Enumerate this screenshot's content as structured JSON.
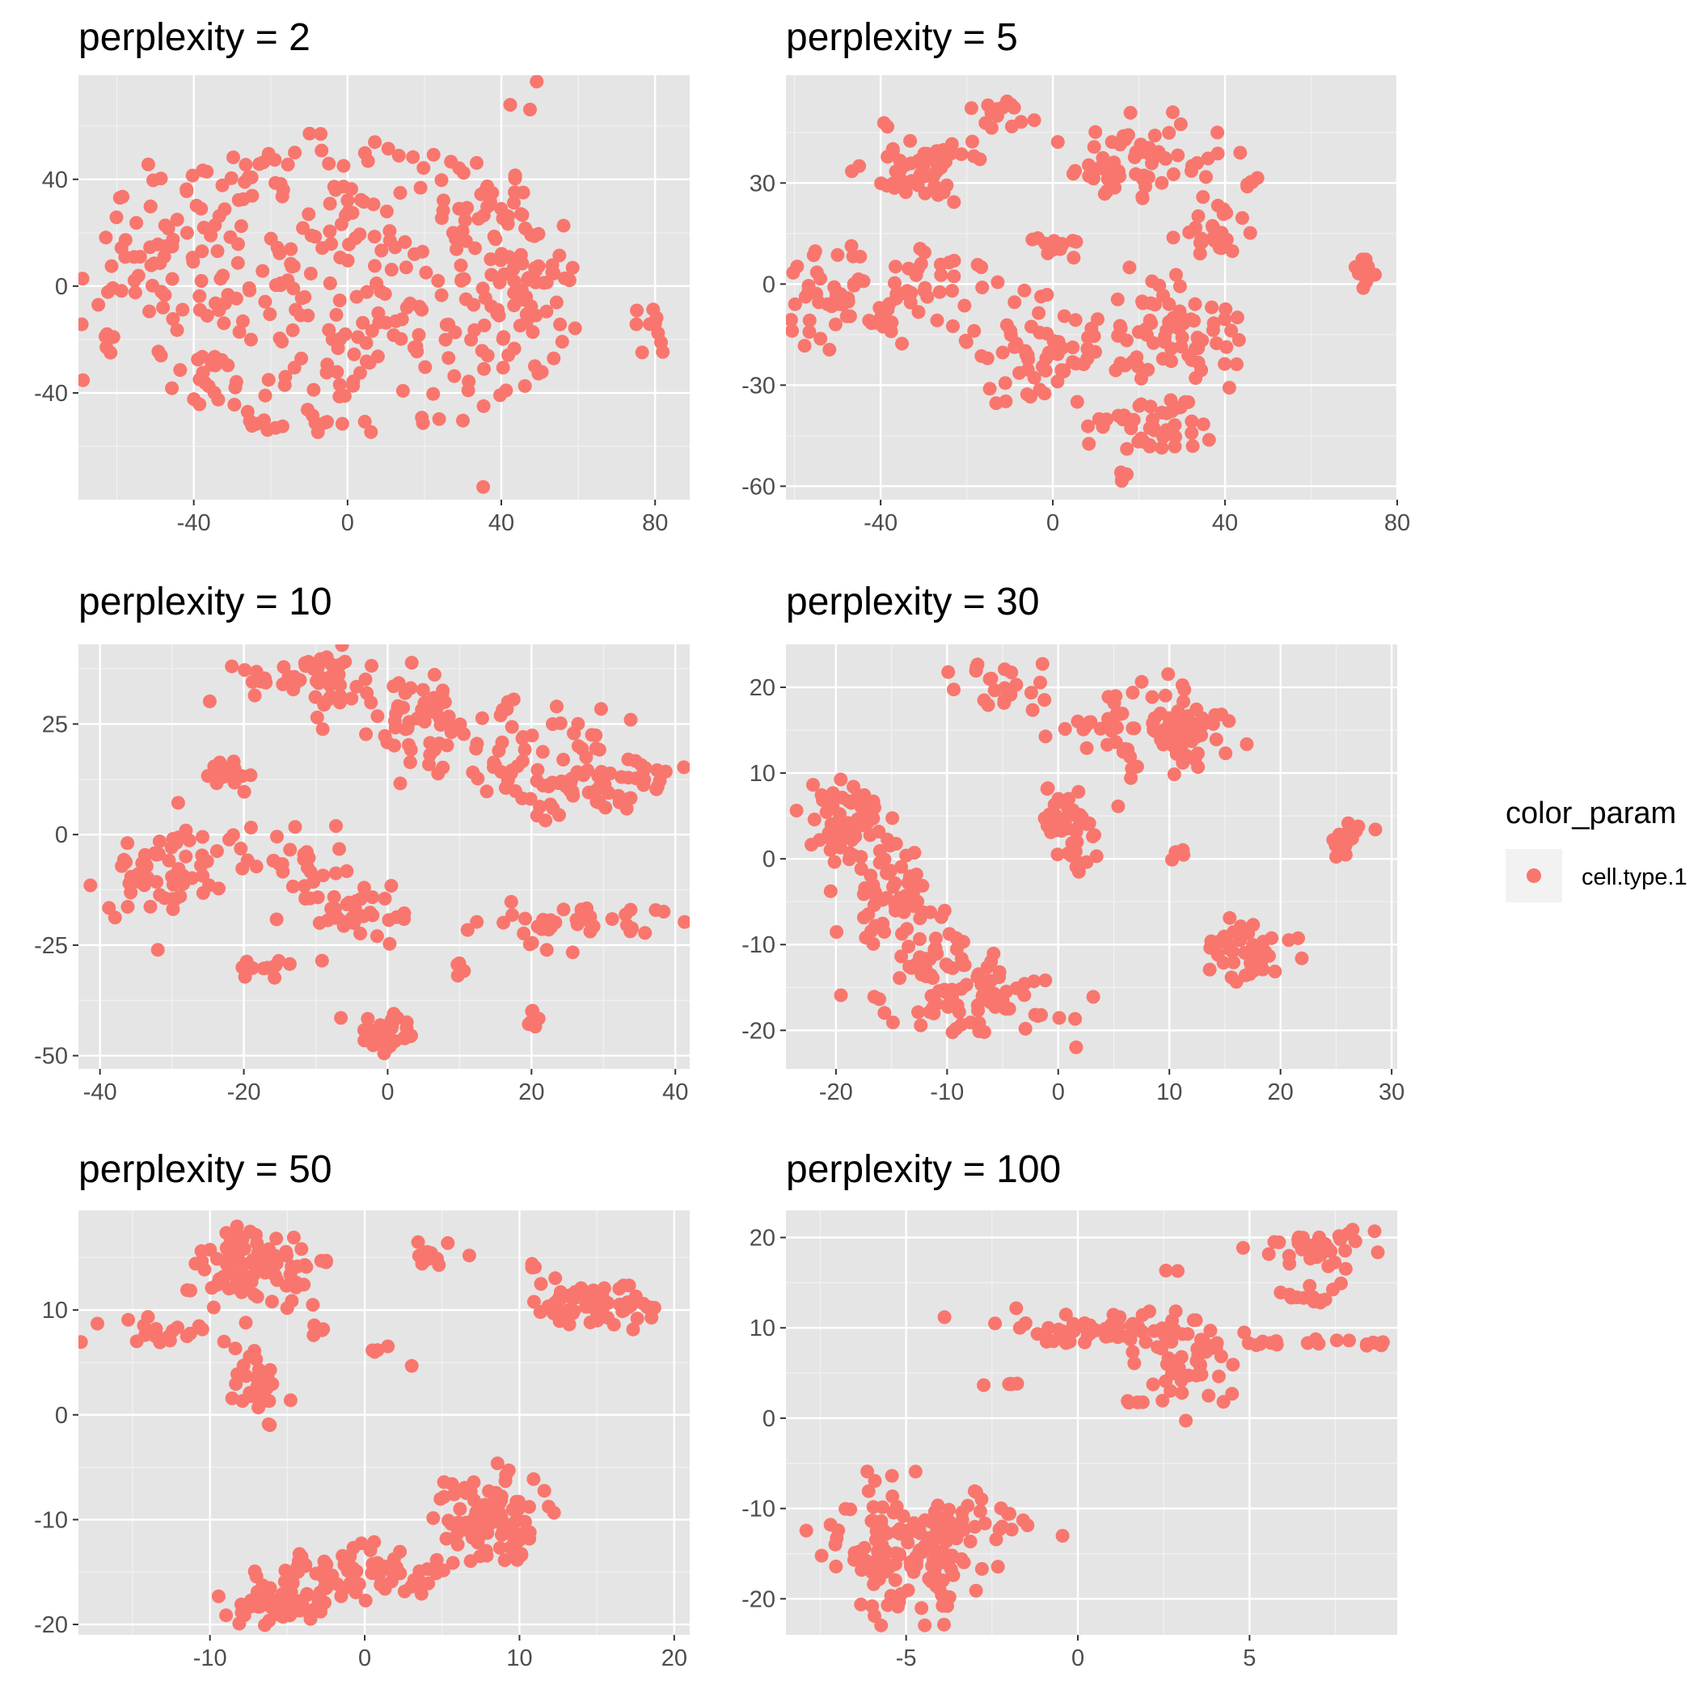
{
  "colors": {
    "panel_bg": "#e5e5e5",
    "grid_major": "#ffffff",
    "grid_minor": "#f2f2f2",
    "point": "#f8766d",
    "tick_text": "#4d4d4d",
    "tick_mark": "#333333",
    "legend_key_bg": "#f2f2f2"
  },
  "legend": {
    "title": "color_param",
    "items": [
      {
        "label": "cell.type.1"
      }
    ],
    "placement": "right"
  },
  "chart_data": [
    {
      "type": "scatter",
      "title": "perplexity = 2",
      "xlim": [
        -70,
        89
      ],
      "ylim": [
        -80,
        79
      ],
      "xticks": [
        -40,
        0,
        40,
        80
      ],
      "yticks": [
        -40,
        0,
        40
      ],
      "clusters": [
        {
          "cx": 0,
          "cy": 0,
          "sx": 35,
          "sy": 33,
          "n": 360,
          "r": 58
        },
        {
          "cx": -55,
          "cy": 15,
          "sx": 8,
          "sy": 12,
          "n": 25
        },
        {
          "cx": 47,
          "cy": 5,
          "sx": 6,
          "sy": 28,
          "n": 30
        },
        {
          "cx": 78,
          "cy": -12,
          "sx": 3,
          "sy": 8,
          "n": 10
        },
        {
          "cx": -65,
          "cy": -25,
          "sx": 3,
          "sy": 5,
          "n": 8
        }
      ]
    },
    {
      "type": "scatter",
      "title": "perplexity = 5",
      "xlim": [
        -62,
        80
      ],
      "ylim": [
        -64,
        62
      ],
      "xticks": [
        -40,
        0,
        40,
        80
      ],
      "yticks": [
        -60,
        -30,
        0,
        30
      ],
      "clusters": [
        {
          "cx": -30,
          "cy": 35,
          "sx": 7,
          "sy": 6,
          "n": 55
        },
        {
          "cx": -13,
          "cy": 50,
          "sx": 5,
          "sy": 3,
          "n": 15
        },
        {
          "cx": 22,
          "cy": 35,
          "sx": 9,
          "sy": 6,
          "n": 60
        },
        {
          "cx": -45,
          "cy": -5,
          "sx": 10,
          "sy": 8,
          "n": 70
        },
        {
          "cx": -25,
          "cy": 3,
          "sx": 5,
          "sy": 5,
          "n": 20
        },
        {
          "cx": 0,
          "cy": 12,
          "sx": 3,
          "sy": 2,
          "n": 15
        },
        {
          "cx": 0,
          "cy": -20,
          "sx": 9,
          "sy": 8,
          "n": 70
        },
        {
          "cx": 28,
          "cy": -15,
          "sx": 8,
          "sy": 9,
          "n": 70
        },
        {
          "cx": 22,
          "cy": -43,
          "sx": 7,
          "sy": 4,
          "n": 45
        },
        {
          "cx": 38,
          "cy": 15,
          "sx": 4,
          "sy": 4,
          "n": 25
        },
        {
          "cx": 46,
          "cy": 30,
          "sx": 1,
          "sy": 1,
          "n": 5
        },
        {
          "cx": 72,
          "cy": 3,
          "sx": 1.2,
          "sy": 3,
          "n": 10
        },
        {
          "cx": 16,
          "cy": -57,
          "sx": 1,
          "sy": 1,
          "n": 6
        }
      ]
    },
    {
      "type": "scatter",
      "title": "perplexity = 10",
      "xlim": [
        -43,
        42
      ],
      "ylim": [
        -53,
        43
      ],
      "xticks": [
        -40,
        -20,
        0,
        20,
        40
      ],
      "yticks": [
        -50,
        -25,
        0,
        25
      ],
      "clusters": [
        {
          "cx": -12,
          "cy": 35,
          "sx": 5,
          "sy": 3,
          "n": 45
        },
        {
          "cx": 2,
          "cy": 28,
          "sx": 6,
          "sy": 4,
          "n": 40
        },
        {
          "cx": 14,
          "cy": 20,
          "sx": 7,
          "sy": 5,
          "n": 55
        },
        {
          "cx": 25,
          "cy": 10,
          "sx": 6,
          "sy": 5,
          "n": 50
        },
        {
          "cx": 33,
          "cy": 14,
          "sx": 4,
          "sy": 4,
          "n": 25
        },
        {
          "cx": -22,
          "cy": 14,
          "sx": 2,
          "sy": 2,
          "n": 15
        },
        {
          "cx": -32,
          "cy": -10,
          "sx": 4,
          "sy": 7,
          "n": 55
        },
        {
          "cx": -15,
          "cy": -6,
          "sx": 6,
          "sy": 4,
          "n": 30
        },
        {
          "cx": -5,
          "cy": -17,
          "sx": 5,
          "sy": 4,
          "n": 40
        },
        {
          "cx": 24,
          "cy": -20,
          "sx": 8,
          "sy": 3,
          "n": 40
        },
        {
          "cx": 0,
          "cy": -45,
          "sx": 2,
          "sy": 2,
          "n": 30
        },
        {
          "cx": -17,
          "cy": -30,
          "sx": 3,
          "sy": 1,
          "n": 12
        },
        {
          "cx": 20,
          "cy": -40,
          "sx": 0.8,
          "sy": 2,
          "n": 6
        },
        {
          "cx": 10,
          "cy": -30,
          "sx": 0.5,
          "sy": 1,
          "n": 4
        }
      ]
    },
    {
      "type": "scatter",
      "title": "perplexity = 30",
      "xlim": [
        -24.5,
        30.5
      ],
      "ylim": [
        -24.5,
        25
      ],
      "xticks": [
        -20,
        -10,
        0,
        10,
        20,
        30
      ],
      "yticks": [
        -20,
        -10,
        0,
        10,
        20
      ],
      "clusters": [
        {
          "cx": -19,
          "cy": 4,
          "sx": 2,
          "sy": 2.5,
          "n": 55
        },
        {
          "cx": -15,
          "cy": -5,
          "sx": 2.5,
          "sy": 3.5,
          "n": 60
        },
        {
          "cx": -11,
          "cy": -11,
          "sx": 2,
          "sy": 2,
          "n": 25
        },
        {
          "cx": -7,
          "cy": -16,
          "sx": 3.5,
          "sy": 2.5,
          "n": 75
        },
        {
          "cx": 1,
          "cy": 4,
          "sx": 1.5,
          "sy": 2.5,
          "n": 45
        },
        {
          "cx": 10,
          "cy": 15,
          "sx": 3,
          "sy": 2.5,
          "n": 75
        },
        {
          "cx": -4,
          "cy": 20,
          "sx": 3,
          "sy": 1.5,
          "n": 25
        },
        {
          "cx": 3,
          "cy": 16,
          "sx": 2,
          "sy": 1,
          "n": 15
        },
        {
          "cx": 17,
          "cy": -11,
          "sx": 2,
          "sy": 2,
          "n": 45
        },
        {
          "cx": 26,
          "cy": 2,
          "sx": 1,
          "sy": 1,
          "n": 15
        },
        {
          "cx": 11,
          "cy": 0.5,
          "sx": 1,
          "sy": 0.4,
          "n": 5
        }
      ]
    },
    {
      "type": "scatter",
      "title": "perplexity = 50",
      "xlim": [
        -18.5,
        21
      ],
      "ylim": [
        -21,
        19.5
      ],
      "xticks": [
        -10,
        0,
        10,
        20
      ],
      "yticks": [
        -20,
        -10,
        0,
        10
      ],
      "clusters": [
        {
          "cx": -7,
          "cy": 14,
          "sx": 2,
          "sy": 2,
          "n": 90
        },
        {
          "cx": -7,
          "cy": 3,
          "sx": 1,
          "sy": 2,
          "n": 30
        },
        {
          "cx": -13,
          "cy": 8,
          "sx": 2,
          "sy": 0.7,
          "n": 20
        },
        {
          "cx": 4.5,
          "cy": 15,
          "sx": 1,
          "sy": 0.7,
          "n": 12
        },
        {
          "cx": 15,
          "cy": 10.5,
          "sx": 2,
          "sy": 1,
          "n": 70
        },
        {
          "cx": 11,
          "cy": 14,
          "sx": 0.3,
          "sy": 0.3,
          "n": 3
        },
        {
          "cx": 1.5,
          "cy": 6,
          "sx": 0.8,
          "sy": 0.3,
          "n": 5
        },
        {
          "cx": -3.5,
          "cy": 8,
          "sx": 0.8,
          "sy": 0.5,
          "n": 4
        },
        {
          "cx": -6,
          "cy": -18,
          "sx": 2,
          "sy": 1,
          "n": 60
        },
        {
          "cx": 0,
          "cy": -15,
          "sx": 3,
          "sy": 1.5,
          "n": 70
        },
        {
          "cx": 8,
          "cy": -10,
          "sx": 2,
          "sy": 2.2,
          "n": 90
        }
      ]
    },
    {
      "type": "scatter",
      "title": "perplexity = 100",
      "xlim": [
        -8.5,
        9.3
      ],
      "ylim": [
        -24,
        23
      ],
      "xticks": [
        -5,
        0,
        5
      ],
      "yticks": [
        -20,
        -10,
        0,
        10,
        20
      ],
      "clusters": [
        {
          "cx": -5,
          "cy": -15,
          "sx": 1.2,
          "sy": 3.5,
          "n": 140
        },
        {
          "cx": -3.5,
          "cy": -11,
          "sx": 1,
          "sy": 1.5,
          "n": 30
        },
        {
          "cx": 0.5,
          "cy": 10,
          "sx": 1.8,
          "sy": 1,
          "n": 60
        },
        {
          "cx": 3.3,
          "cy": 6,
          "sx": 0.8,
          "sy": 1.8,
          "n": 40
        },
        {
          "cx": 6.8,
          "cy": 19,
          "sx": 0.8,
          "sy": 1,
          "n": 35
        },
        {
          "cx": 6.8,
          "cy": 13.5,
          "sx": 0.5,
          "sy": 0.5,
          "n": 15
        },
        {
          "cx": 7,
          "cy": 8.3,
          "sx": 1.5,
          "sy": 0.2,
          "n": 20
        },
        {
          "cx": -1.8,
          "cy": 3.8,
          "sx": 0.5,
          "sy": 0.1,
          "n": 6
        },
        {
          "cx": 2,
          "cy": 1.8,
          "sx": 0.4,
          "sy": 0.1,
          "n": 5
        },
        {
          "cx": 2.8,
          "cy": 16.3,
          "sx": 0.1,
          "sy": 0.1,
          "n": 2
        }
      ]
    }
  ]
}
